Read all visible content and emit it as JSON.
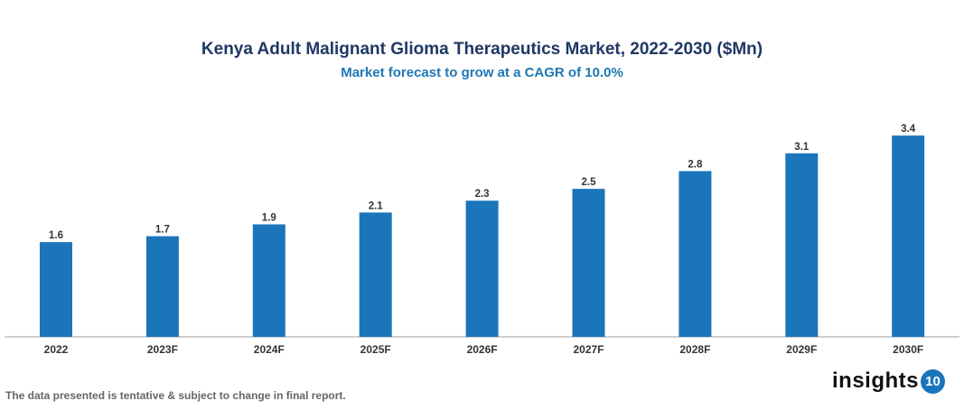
{
  "chart_data": {
    "type": "bar",
    "title": "Kenya Adult Malignant Glioma Therapeutics Market, 2022-2030 ($Mn)",
    "subtitle": "Market forecast to grow at a CAGR of 10.0%",
    "categories": [
      "2022",
      "2023F",
      "2024F",
      "2025F",
      "2026F",
      "2027F",
      "2028F",
      "2029F",
      "2030F"
    ],
    "values": [
      1.6,
      1.7,
      1.9,
      2.1,
      2.3,
      2.5,
      2.8,
      3.1,
      3.4
    ],
    "xlabel": "",
    "ylabel": "",
    "ylim": [
      0,
      3.6
    ],
    "grid": false,
    "data_labels": true,
    "bar_color": "#1b75bb"
  },
  "footer": "The data presented is tentative & subject to change in final report.",
  "logo": {
    "text": "insights",
    "badge": "10"
  }
}
